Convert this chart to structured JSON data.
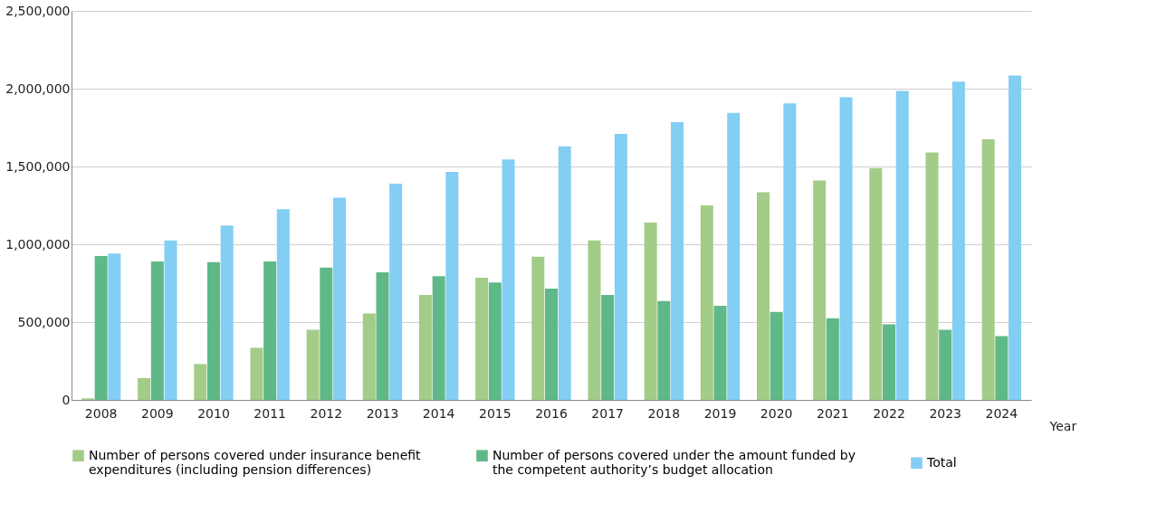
{
  "chart_data": {
    "type": "bar",
    "xlabel": "Year",
    "categories": [
      "2008",
      "2009",
      "2010",
      "2011",
      "2012",
      "2013",
      "2014",
      "2015",
      "2016",
      "2017",
      "2018",
      "2019",
      "2020",
      "2021",
      "2022",
      "2023",
      "2024"
    ],
    "series": [
      {
        "name": "Number of persons covered under insurance benefit expenditures (including pension differences)",
        "color": "#a3cc88",
        "values": [
          10000,
          140000,
          230000,
          335000,
          450000,
          555000,
          675000,
          785000,
          920000,
          1025000,
          1140000,
          1250000,
          1335000,
          1410000,
          1490000,
          1590000,
          1675000
        ]
      },
      {
        "name": "Number of persons covered under the amount funded by the competent authority’s budget allocation",
        "color": "#5fb887",
        "values": [
          925000,
          890000,
          885000,
          890000,
          850000,
          820000,
          795000,
          755000,
          715000,
          675000,
          635000,
          605000,
          565000,
          525000,
          485000,
          450000,
          410000
        ]
      },
      {
        "name": "Total",
        "color": "#83cef3",
        "values": [
          940000,
          1025000,
          1120000,
          1225000,
          1300000,
          1390000,
          1465000,
          1545000,
          1630000,
          1710000,
          1785000,
          1845000,
          1905000,
          1945000,
          1985000,
          2045000,
          2085000
        ]
      }
    ],
    "ylim": [
      0,
      2500000
    ],
    "yticks": [
      {
        "value": 0,
        "label": "0"
      },
      {
        "value": 500000,
        "label": "500,000"
      },
      {
        "value": 1000000,
        "label": "1,000,000"
      },
      {
        "value": 1500000,
        "label": "1,500,000"
      },
      {
        "value": 2000000,
        "label": "2,000,000"
      },
      {
        "value": 2500000,
        "label": "2,500,000"
      }
    ],
    "grid": "y",
    "legend": "bottom"
  }
}
